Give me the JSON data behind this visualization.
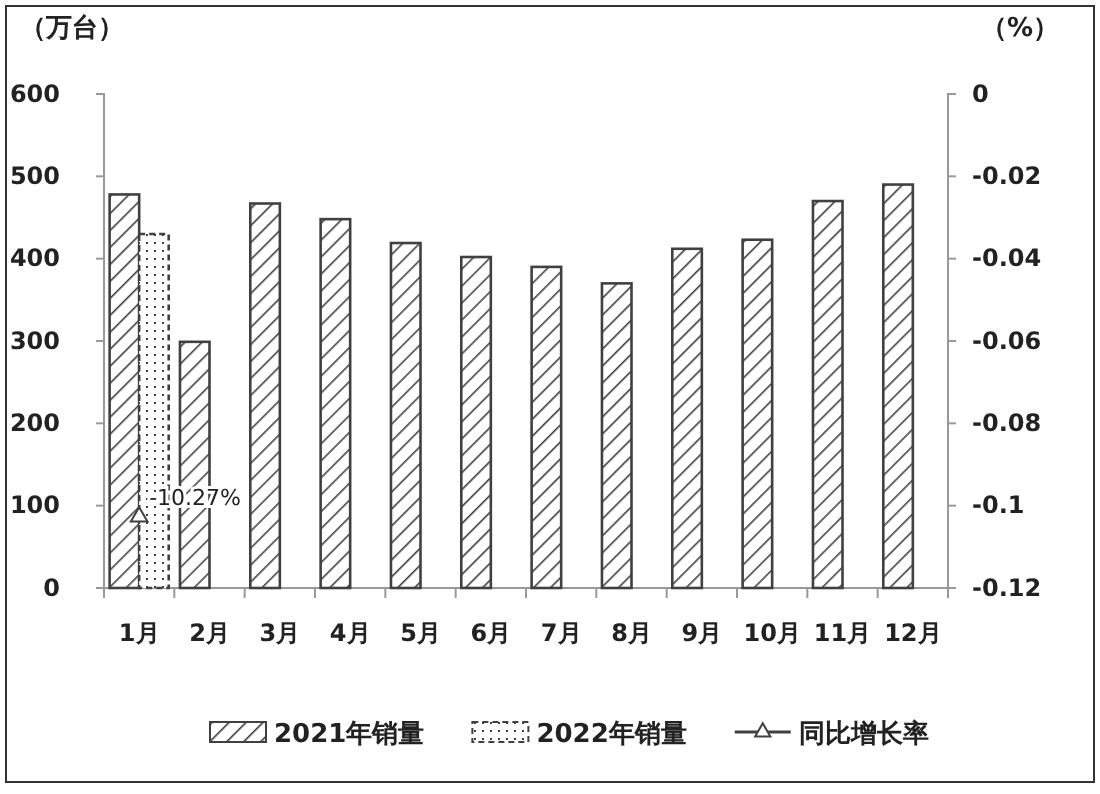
{
  "chart_data": {
    "type": "bar",
    "ylabel": "（万台）",
    "y2label": "（%）",
    "categories": [
      "1月",
      "2月",
      "3月",
      "4月",
      "5月",
      "6月",
      "7月",
      "8月",
      "9月",
      "10月",
      "11月",
      "12月"
    ],
    "series": [
      {
        "name": "2021年销量",
        "color": "#404040",
        "values": [
          478,
          299,
          467,
          448,
          419,
          402,
          390,
          370,
          412,
          423,
          470,
          490
        ]
      },
      {
        "name": "2022年销量",
        "color": "#404040",
        "values": [
          430,
          null,
          null,
          null,
          null,
          null,
          null,
          null,
          null,
          null,
          null,
          null
        ]
      },
      {
        "name": "同比增长率",
        "type": "line",
        "axis": "y2",
        "color": "#404040",
        "marker": "triangle",
        "values": [
          -0.1027,
          null,
          null,
          null,
          null,
          null,
          null,
          null,
          null,
          null,
          null,
          null
        ],
        "value_labels": [
          "-10.27%",
          null,
          null,
          null,
          null,
          null,
          null,
          null,
          null,
          null,
          null,
          null
        ]
      }
    ],
    "ylim": [
      0,
      600
    ],
    "yticks": [
      0,
      100,
      200,
      300,
      400,
      500,
      600
    ],
    "y2lim": [
      -0.12,
      0
    ],
    "y2ticks": [
      -0.12,
      -0.1,
      -0.08,
      -0.06,
      -0.04,
      -0.02,
      0
    ],
    "legend": "bottom",
    "grid": false
  }
}
